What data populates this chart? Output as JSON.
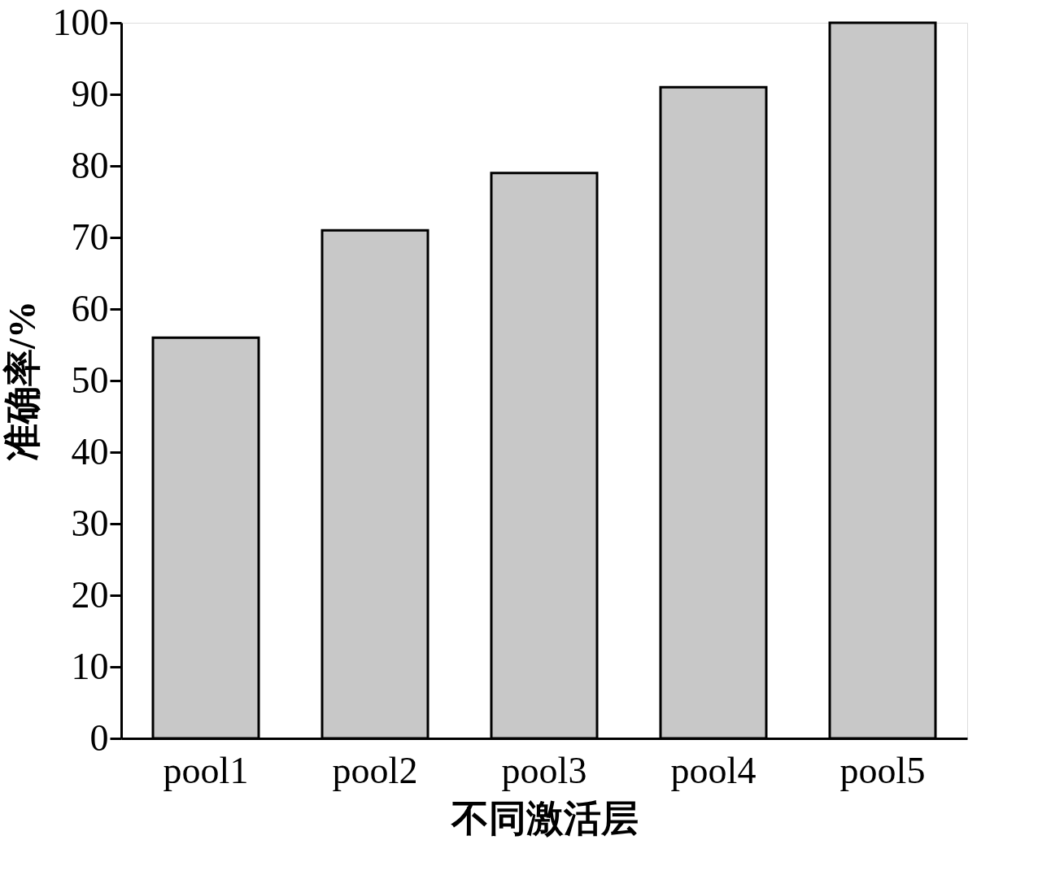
{
  "chart_data": {
    "type": "bar",
    "xlabel": "不同激活层",
    "ylabel": "准确率/%",
    "categories": [
      "pool1",
      "pool2",
      "pool3",
      "pool4",
      "pool5"
    ],
    "values": [
      56,
      71,
      79,
      91,
      100
    ],
    "color": "#c8c8c8",
    "ylim": [
      0,
      100
    ],
    "yticks": [
      0,
      10,
      20,
      30,
      40,
      50,
      60,
      70,
      80,
      90,
      100
    ],
    "grid": false
  }
}
